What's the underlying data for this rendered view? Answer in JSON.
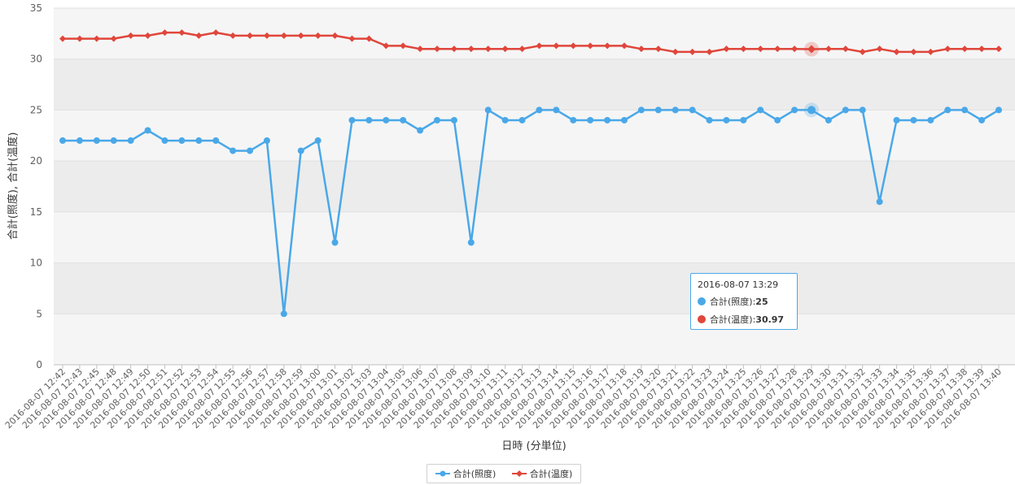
{
  "chart_data": {
    "type": "line",
    "title": "",
    "xlabel": "日時 (分単位)",
    "ylabel": "合計(照度), 合計(温度)",
    "ylim": [
      0,
      35
    ],
    "yticks": [
      0,
      5,
      10,
      15,
      20,
      25,
      30,
      35
    ],
    "grid": true,
    "legend_position": "bottom-center",
    "categories": [
      "2016-08-07 12:42",
      "2016-08-07 12:43",
      "2016-08-07 12:45",
      "2016-08-07 12:48",
      "2016-08-07 12:49",
      "2016-08-07 12:50",
      "2016-08-07 12:51",
      "2016-08-07 12:52",
      "2016-08-07 12:53",
      "2016-08-07 12:54",
      "2016-08-07 12:55",
      "2016-08-07 12:56",
      "2016-08-07 12:57",
      "2016-08-07 12:58",
      "2016-08-07 12:59",
      "2016-08-07 13:00",
      "2016-08-07 13:01",
      "2016-08-07 13:02",
      "2016-08-07 13:03",
      "2016-08-07 13:04",
      "2016-08-07 13:05",
      "2016-08-07 13:06",
      "2016-08-07 13:07",
      "2016-08-07 13:08",
      "2016-08-07 13:09",
      "2016-08-07 13:10",
      "2016-08-07 13:11",
      "2016-08-07 13:12",
      "2016-08-07 13:13",
      "2016-08-07 13:14",
      "2016-08-07 13:15",
      "2016-08-07 13:16",
      "2016-08-07 13:17",
      "2016-08-07 13:18",
      "2016-08-07 13:19",
      "2016-08-07 13:20",
      "2016-08-07 13:21",
      "2016-08-07 13:22",
      "2016-08-07 13:23",
      "2016-08-07 13:24",
      "2016-08-07 13:25",
      "2016-08-07 13:26",
      "2016-08-07 13:27",
      "2016-08-07 13:28",
      "2016-08-07 13:29",
      "2016-08-07 13:30",
      "2016-08-07 13:31",
      "2016-08-07 13:32",
      "2016-08-07 13:33",
      "2016-08-07 13:34",
      "2016-08-07 13:35",
      "2016-08-07 13:36",
      "2016-08-07 13:37",
      "2016-08-07 13:38",
      "2016-08-07 13:39",
      "2016-08-07 13:40"
    ],
    "series": [
      {
        "name": "合計(照度)",
        "color": "#4aa8e8",
        "marker": "circle",
        "values": [
          22,
          22,
          22,
          22,
          22,
          23,
          22,
          22,
          22,
          22,
          21,
          21,
          22,
          5,
          21,
          22,
          12,
          24,
          24,
          24,
          24,
          23,
          24,
          24,
          12,
          25,
          24,
          24,
          25,
          25,
          24,
          24,
          24,
          24,
          25,
          25,
          25,
          25,
          24,
          24,
          24,
          25,
          24,
          25,
          25,
          24,
          25,
          25,
          16,
          24,
          24,
          24,
          25,
          25,
          24,
          25
        ]
      },
      {
        "name": "合計(温度)",
        "color": "#e0463b",
        "marker": "diamond",
        "values": [
          32,
          32,
          32,
          32,
          32.3,
          32.3,
          32.6,
          32.6,
          32.3,
          32.6,
          32.3,
          32.3,
          32.3,
          32.3,
          32.3,
          32.3,
          32.3,
          32,
          32,
          31.3,
          31.3,
          31,
          31,
          31,
          31,
          31,
          31,
          31,
          31.3,
          31.3,
          31.3,
          31.3,
          31.3,
          31.3,
          31,
          31,
          30.7,
          30.7,
          30.7,
          31,
          31,
          31,
          31,
          31,
          30.97,
          31,
          31,
          30.7,
          31,
          30.7,
          30.7,
          30.7,
          31,
          31,
          31,
          31
        ]
      }
    ],
    "highlight_index": 44,
    "tooltip": {
      "header": "2016-08-07 13:29",
      "rows": [
        {
          "label": "合計(照度): ",
          "value": "25"
        },
        {
          "label": "合計(温度): ",
          "value": "30.97"
        }
      ]
    }
  }
}
